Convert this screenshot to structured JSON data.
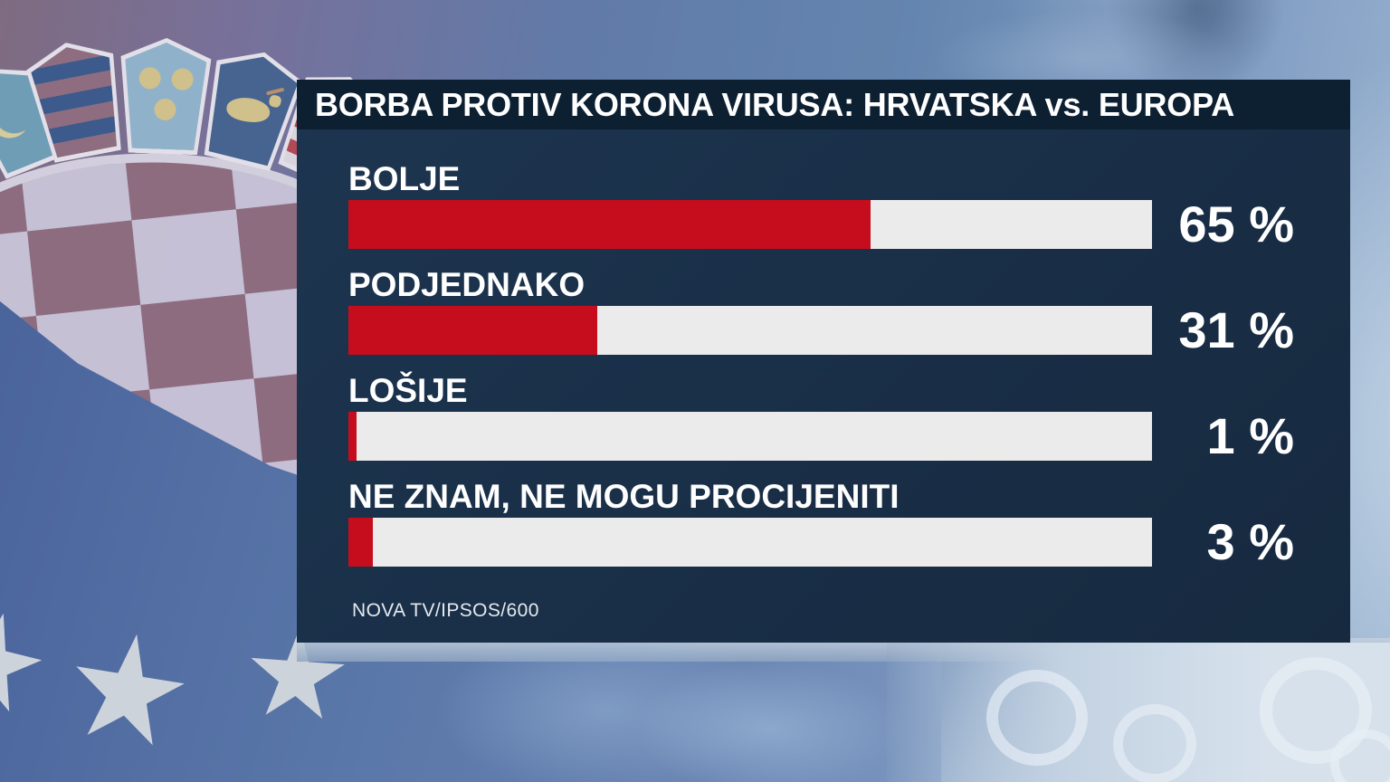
{
  "source": {
    "label": "NOVA TV/IPSOS/600"
  },
  "chart_data": {
    "type": "bar",
    "orientation": "horizontal",
    "title": "BORBA PROTIV KORONA VIRUSA: HRVATSKA vs. EUROPA",
    "categories": [
      "BOLJE",
      "PODJEDNAKO",
      "LOŠIJE",
      "NE ZNAM, NE MOGU PROCIJENITI"
    ],
    "values": [
      65,
      31,
      1,
      3
    ],
    "value_labels": [
      "65 %",
      "31 %",
      "1 %",
      "3 %"
    ],
    "xlim": [
      0,
      100
    ],
    "grid": false,
    "legend": "none",
    "source": "NOVA TV/IPSOS/600",
    "colors": {
      "bar": "#c60d1d",
      "track": "#ebebeb",
      "panel": "#17293f",
      "title_bar": "#0d2032",
      "text": "#ffffff"
    }
  },
  "background": {
    "motifs": [
      "croatian-coat-of-arms",
      "flag-stars",
      "coronavirus-particles"
    ]
  }
}
